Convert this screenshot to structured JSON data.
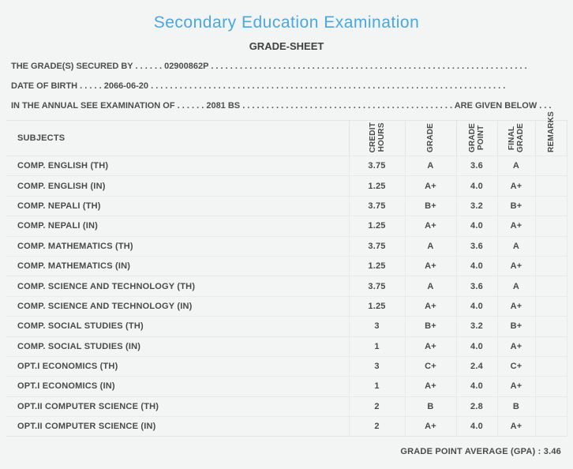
{
  "page": {
    "title": "Secondary Education Examination",
    "subtitle": "GRADE-SHEET"
  },
  "info": {
    "secured_by": {
      "label": "THE GRADE(S) SECURED BY",
      "leader": " . . . . . . ",
      "value": "02900862P",
      "trail": " . . . . . . . . . . . . . . . . . . . . . . . . . . . . . . . . . . . . . . . . . . . . . . . . . . . . . . . . . . . . . . . . . .",
      "suffix": ""
    },
    "date_of_birth": {
      "label": "DATE OF BIRTH",
      "leader": " . . . . . ",
      "value": "2066-06-20",
      "trail": " . . . . . . . . . . . . . . . . . . . . . . . . . . . . . . . . . . . . . . . . . . . . . . . . . . . . . . . . . . . . . . . . . . . . . . . . . .",
      "suffix": ""
    },
    "examination_of": {
      "label": "IN THE ANNUAL SEE EXAMINATION OF",
      "leader": " . . . . . . ",
      "value": "2081 BS",
      "trail": " . . . . . . . . . . . . . . . . . . . . . . . . . . . . . . . . . . . . . . . . . . . . ",
      "suffix": "ARE GIVEN BELOW . . ."
    }
  },
  "table": {
    "headers": {
      "subjects": "SUBJECTS",
      "credit_hours": "CREDIT\nHOURS",
      "grade": "GRADE",
      "grade_point": "GRADE\nPOINT",
      "final_grade": "FINAL\nGRADE",
      "remarks": "REMARKS"
    },
    "rows": [
      {
        "subject": "COMP. ENGLISH (TH)",
        "credit": "3.75",
        "grade": "A",
        "point": "3.6",
        "final": "A",
        "remarks": ""
      },
      {
        "subject": "COMP. ENGLISH (IN)",
        "credit": "1.25",
        "grade": "A+",
        "point": "4.0",
        "final": "A+",
        "remarks": ""
      },
      {
        "subject": "COMP. NEPALI (TH)",
        "credit": "3.75",
        "grade": "B+",
        "point": "3.2",
        "final": "B+",
        "remarks": ""
      },
      {
        "subject": "COMP. NEPALI (IN)",
        "credit": "1.25",
        "grade": "A+",
        "point": "4.0",
        "final": "A+",
        "remarks": ""
      },
      {
        "subject": "COMP. MATHEMATICS (TH)",
        "credit": "3.75",
        "grade": "A",
        "point": "3.6",
        "final": "A",
        "remarks": ""
      },
      {
        "subject": "COMP. MATHEMATICS (IN)",
        "credit": "1.25",
        "grade": "A+",
        "point": "4.0",
        "final": "A+",
        "remarks": ""
      },
      {
        "subject": "COMP. SCIENCE AND TECHNOLOGY (TH)",
        "credit": "3.75",
        "grade": "A",
        "point": "3.6",
        "final": "A",
        "remarks": ""
      },
      {
        "subject": "COMP. SCIENCE AND TECHNOLOGY (IN)",
        "credit": "1.25",
        "grade": "A+",
        "point": "4.0",
        "final": "A+",
        "remarks": ""
      },
      {
        "subject": "COMP. SOCIAL STUDIES (TH)",
        "credit": "3",
        "grade": "B+",
        "point": "3.2",
        "final": "B+",
        "remarks": ""
      },
      {
        "subject": "COMP. SOCIAL STUDIES (IN)",
        "credit": "1",
        "grade": "A+",
        "point": "4.0",
        "final": "A+",
        "remarks": ""
      },
      {
        "subject": "OPT.I ECONOMICS (TH)",
        "credit": "3",
        "grade": "C+",
        "point": "2.4",
        "final": "C+",
        "remarks": ""
      },
      {
        "subject": "OPT.I ECONOMICS (IN)",
        "credit": "1",
        "grade": "A+",
        "point": "4.0",
        "final": "A+",
        "remarks": ""
      },
      {
        "subject": "OPT.II COMPUTER SCIENCE (TH)",
        "credit": "2",
        "grade": "B",
        "point": "2.8",
        "final": "B",
        "remarks": ""
      },
      {
        "subject": "OPT.II COMPUTER SCIENCE (IN)",
        "credit": "2",
        "grade": "A+",
        "point": "4.0",
        "final": "A+",
        "remarks": ""
      }
    ]
  },
  "footer": {
    "gpa": "GRADE POINT AVERAGE (GPA) : 3.46"
  },
  "colors": {
    "accent": "#4aa7e3",
    "text": "#4a4a4a",
    "border": "#e4e4e4",
    "background": "#f3f4f4"
  }
}
